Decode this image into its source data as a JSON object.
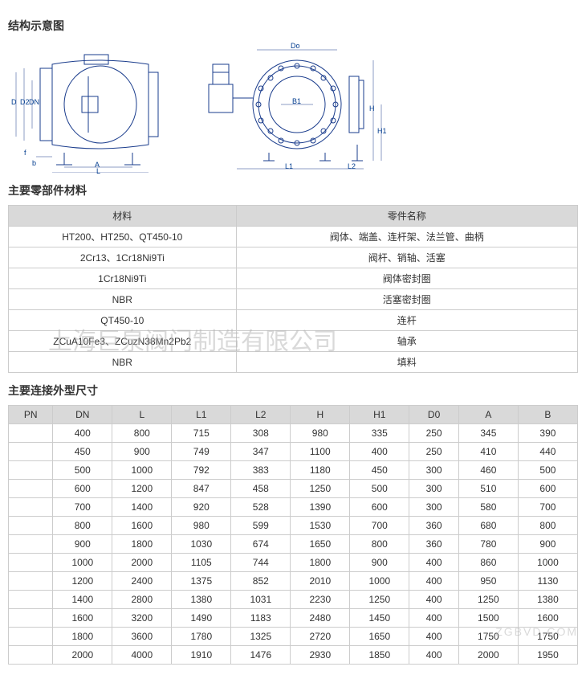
{
  "sections": {
    "structure_title": "结构示意图",
    "materials_title": "主要零部件材料",
    "dimensions_title": "主要连接外型尺寸"
  },
  "diagram": {
    "width_total": 710,
    "height": 165,
    "stroke_color": "#1a3c8c",
    "left_view": {
      "labels": [
        "D",
        "D2",
        "DN",
        "f",
        "b",
        "A",
        "L"
      ]
    },
    "right_view": {
      "labels": [
        "Do",
        "B1",
        "H",
        "H1",
        "L1",
        "L2"
      ]
    }
  },
  "materials_table": {
    "headers": [
      "材料",
      "零件名称"
    ],
    "rows": [
      [
        "HT200、HT250、QT450-10",
        "阀体、端盖、连杆架、法兰管、曲柄"
      ],
      [
        "2Cr13、1Cr18Ni9Ti",
        "阀杆、销轴、活塞"
      ],
      [
        "1Cr18Ni9Ti",
        "阀体密封圈"
      ],
      [
        "NBR",
        "活塞密封圈"
      ],
      [
        "QT450-10",
        "连杆"
      ],
      [
        "ZCuA10Fe3、ZCuzN38Mn2Pb2",
        "轴承"
      ],
      [
        "NBR",
        "填料"
      ]
    ],
    "header_bg": "#d9d9d9",
    "border_color": "#cccccc"
  },
  "dimensions_table": {
    "headers": [
      "PN",
      "DN",
      "L",
      "L1",
      "L2",
      "H",
      "H1",
      "D0",
      "A",
      "B"
    ],
    "rows": [
      [
        "",
        "400",
        "800",
        "715",
        "308",
        "980",
        "335",
        "250",
        "345",
        "390"
      ],
      [
        "",
        "450",
        "900",
        "749",
        "347",
        "1100",
        "400",
        "250",
        "410",
        "440"
      ],
      [
        "",
        "500",
        "1000",
        "792",
        "383",
        "1180",
        "450",
        "300",
        "460",
        "500"
      ],
      [
        "",
        "600",
        "1200",
        "847",
        "458",
        "1250",
        "500",
        "300",
        "510",
        "600"
      ],
      [
        "",
        "700",
        "1400",
        "920",
        "528",
        "1390",
        "600",
        "300",
        "580",
        "700"
      ],
      [
        "",
        "800",
        "1600",
        "980",
        "599",
        "1530",
        "700",
        "360",
        "680",
        "800"
      ],
      [
        "",
        "900",
        "1800",
        "1030",
        "674",
        "1650",
        "800",
        "360",
        "780",
        "900"
      ],
      [
        "",
        "1000",
        "2000",
        "1105",
        "744",
        "1800",
        "900",
        "400",
        "860",
        "1000"
      ],
      [
        "",
        "1200",
        "2400",
        "1375",
        "852",
        "2010",
        "1000",
        "400",
        "950",
        "1130"
      ],
      [
        "",
        "1400",
        "2800",
        "1380",
        "1031",
        "2230",
        "1250",
        "400",
        "1250",
        "1380"
      ],
      [
        "",
        "1600",
        "3200",
        "1490",
        "1183",
        "2480",
        "1450",
        "400",
        "1500",
        "1600"
      ],
      [
        "",
        "1800",
        "3600",
        "1780",
        "1325",
        "2720",
        "1650",
        "400",
        "1750",
        "1750"
      ],
      [
        "",
        "2000",
        "4000",
        "1910",
        "1476",
        "2930",
        "1850",
        "400",
        "2000",
        "1950"
      ]
    ]
  },
  "watermarks": {
    "company": "上海巨泉阀门制造有限公司",
    "site": "ZGBVD.COM"
  }
}
